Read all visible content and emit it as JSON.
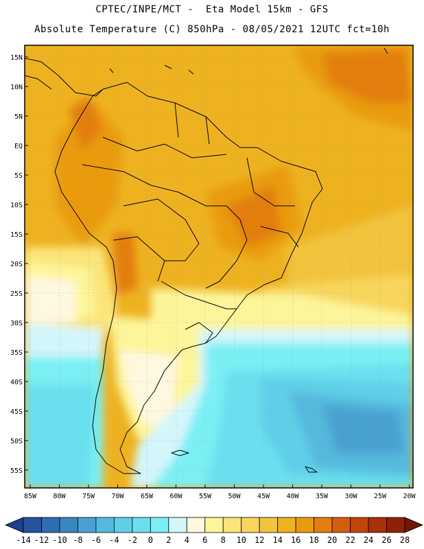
{
  "header": {
    "line1": "CPTEC/INPE/MCT -  Eta Model 15km - GFS",
    "line2": "Absolute Temperature (C) 850hPa - 08/05/2021 12UTC fct=10h"
  },
  "axes": {
    "lat_labels": [
      "15N",
      "10N",
      "5N",
      "EQ",
      "5S",
      "10S",
      "15S",
      "20S",
      "25S",
      "30S",
      "35S",
      "40S",
      "45S",
      "50S",
      "55S"
    ],
    "lon_labels": [
      "85W",
      "80W",
      "75W",
      "70W",
      "65W",
      "60W",
      "55W",
      "50W",
      "45W",
      "40W",
      "35W",
      "30W",
      "25W",
      "20W"
    ]
  },
  "colorbar": {
    "labels": [
      "-14",
      "-12",
      "-10",
      "-8",
      "-6",
      "-4",
      "-2",
      "0",
      "2",
      "4",
      "6",
      "8",
      "10",
      "12",
      "14",
      "16",
      "18",
      "20",
      "22",
      "24",
      "26",
      "28"
    ],
    "colors": [
      "#1f3f8f",
      "#2653a0",
      "#2f6db5",
      "#3a86c3",
      "#4aa1d1",
      "#55b9de",
      "#5fcfe8",
      "#6ae0ef",
      "#7af0f5",
      "#d3f6fb",
      "#fff8e0",
      "#fdf59a",
      "#fbe57a",
      "#f8d65b",
      "#f2c43e",
      "#eeb221",
      "#e99b10",
      "#e37e0f",
      "#d35f0d",
      "#c2450c",
      "#a8310a",
      "#8e2208",
      "#701707"
    ]
  }
}
